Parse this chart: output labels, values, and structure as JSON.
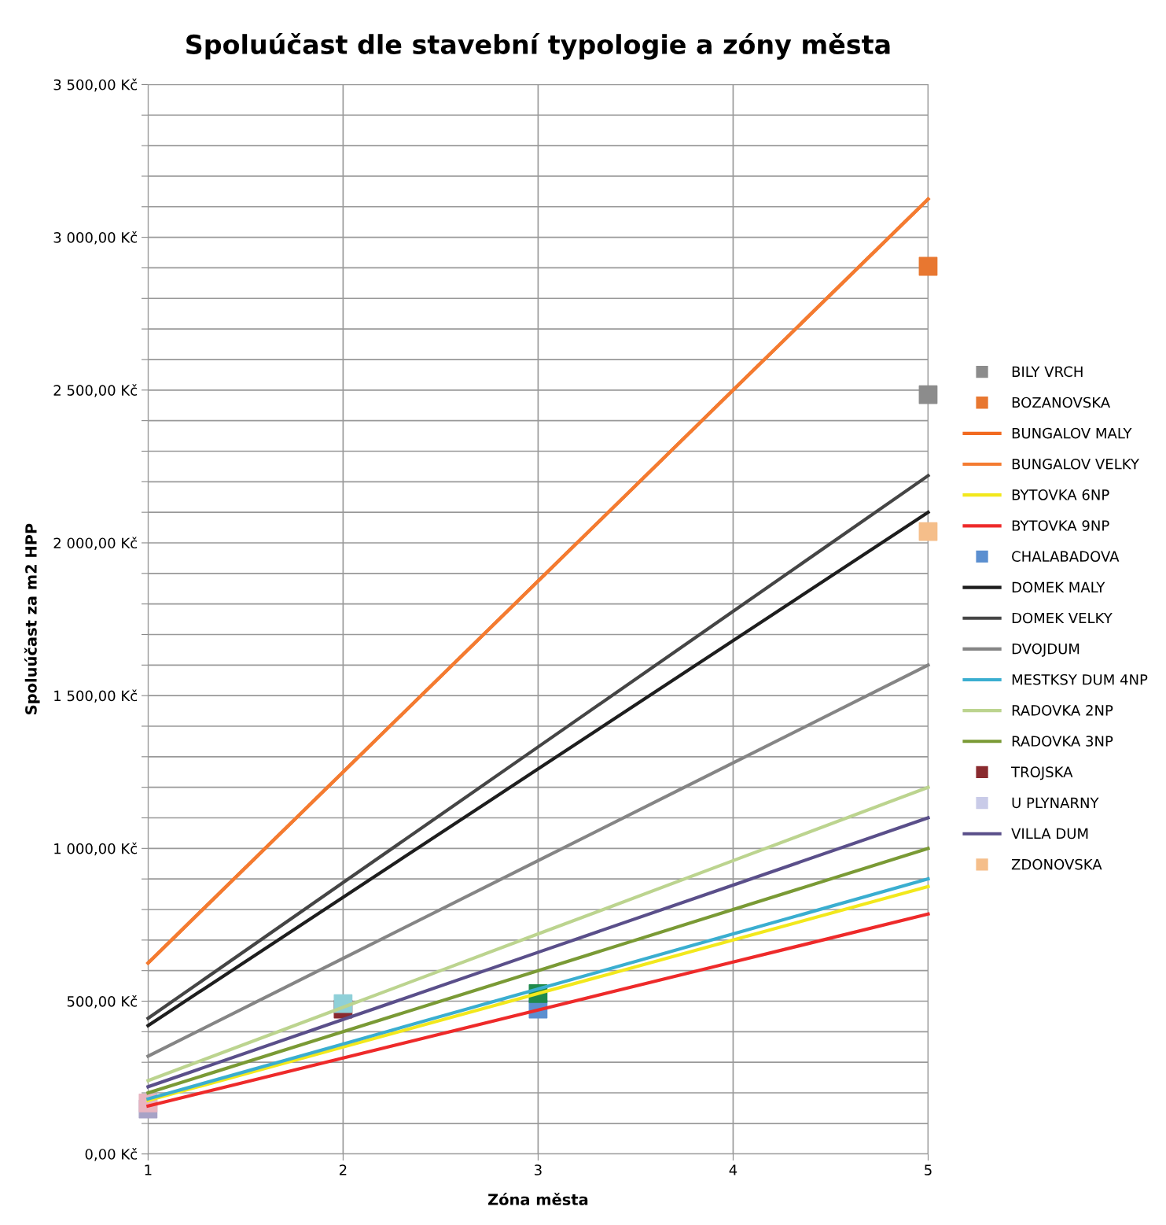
{
  "chart_data": {
    "type": "line",
    "title": "Spoluúčast dle stavební typologie a zóny města",
    "xlabel": "Zóna města",
    "ylabel": "Spoluúčast za m2 HPP",
    "xlim": [
      1,
      5
    ],
    "xticks": [
      1,
      2,
      3,
      4,
      5
    ],
    "ylim": [
      0,
      3500
    ],
    "yticks": [
      {
        "value": 0,
        "label": "0,00 Kč"
      },
      {
        "value": 100,
        "label": null
      },
      {
        "value": 200,
        "label": null
      },
      {
        "value": 300,
        "label": null
      },
      {
        "value": 400,
        "label": null
      },
      {
        "value": 500,
        "label": "500,00 Kč"
      },
      {
        "value": 600,
        "label": null
      },
      {
        "value": 700,
        "label": null
      },
      {
        "value": 800,
        "label": null
      },
      {
        "value": 900,
        "label": null
      },
      {
        "value": 1000,
        "label": "1 000,00 Kč"
      },
      {
        "value": 1100,
        "label": null
      },
      {
        "value": 1200,
        "label": null
      },
      {
        "value": 1300,
        "label": null
      },
      {
        "value": 1400,
        "label": null
      },
      {
        "value": 1500,
        "label": "1 500,00 Kč"
      },
      {
        "value": 1600,
        "label": null
      },
      {
        "value": 1700,
        "label": null
      },
      {
        "value": 1800,
        "label": null
      },
      {
        "value": 1900,
        "label": null
      },
      {
        "value": 2000,
        "label": "2 000,00 Kč"
      },
      {
        "value": 2100,
        "label": null
      },
      {
        "value": 2200,
        "label": null
      },
      {
        "value": 2300,
        "label": null
      },
      {
        "value": 2400,
        "label": null
      },
      {
        "value": 2500,
        "label": "2 500,00 Kč"
      },
      {
        "value": 2600,
        "label": null
      },
      {
        "value": 2700,
        "label": null
      },
      {
        "value": 2800,
        "label": null
      },
      {
        "value": 2900,
        "label": null
      },
      {
        "value": 3000,
        "label": "3 000,00 Kč"
      },
      {
        "value": 3100,
        "label": null
      },
      {
        "value": 3200,
        "label": null
      },
      {
        "value": 3300,
        "label": null
      },
      {
        "value": 3400,
        "label": null
      },
      {
        "value": 3500,
        "label": "3 500,00 Kč"
      }
    ],
    "grid": true,
    "legend": "right",
    "series": [
      {
        "name": "BILY VRCH",
        "type": "scatter",
        "marker": "square",
        "color": "#8c8c8c",
        "x": [
          5
        ],
        "values": [
          2485
        ]
      },
      {
        "name": "BOZANOVSKA",
        "type": "scatter",
        "marker": "square",
        "color": "#e87730",
        "x": [
          5
        ],
        "values": [
          2905
        ]
      },
      {
        "name": "BUNGALOV MALY",
        "type": "line",
        "color": "#f26a21",
        "x": [
          1,
          2,
          3,
          4,
          5
        ],
        "values": [
          625,
          1250,
          1875,
          2500,
          3125
        ]
      },
      {
        "name": "BUNGALOV VELKY",
        "type": "line",
        "color": "#f47b30",
        "x": [
          1,
          2,
          3,
          4,
          5
        ],
        "values": [
          625,
          1250,
          1875,
          2500,
          3125
        ]
      },
      {
        "name": "BYTOVKA 6NP",
        "type": "line",
        "color": "#f2e81c",
        "x": [
          1,
          2,
          3,
          4,
          5
        ],
        "values": [
          175,
          350,
          525,
          700,
          875
        ]
      },
      {
        "name": "BYTOVKA 9NP",
        "type": "line",
        "color": "#ee2a2a",
        "x": [
          1,
          2,
          3,
          4,
          5
        ],
        "values": [
          157,
          314,
          471,
          628,
          785
        ]
      },
      {
        "name": "CHALABADOVA",
        "type": "scatter",
        "marker": "square",
        "color": "#5b8fd0",
        "x": [
          3
        ],
        "values": [
          474
        ]
      },
      {
        "name": "DOMEK MALY",
        "type": "line",
        "color": "#1e1e1e",
        "x": [
          1,
          2,
          3,
          4,
          5
        ],
        "values": [
          420,
          840,
          1260,
          1680,
          2100
        ]
      },
      {
        "name": "DOMEK VELKY",
        "type": "line",
        "color": "#454545",
        "x": [
          1,
          2,
          3,
          4,
          5
        ],
        "values": [
          444,
          888,
          1332,
          1776,
          2220
        ]
      },
      {
        "name": "DVOJDUM",
        "type": "line",
        "color": "#858585",
        "x": [
          1,
          2,
          3,
          4,
          5
        ],
        "values": [
          320,
          640,
          960,
          1280,
          1600
        ]
      },
      {
        "type": "scatter",
        "marker": "square",
        "color": "#a7a2c6",
        "x": [
          1
        ],
        "values": [
          147
        ]
      },
      {
        "name": "MESTKSY DUM 4NP",
        "type": "line",
        "color": "#3aaed0",
        "x": [
          1,
          2,
          3,
          4,
          5
        ],
        "values": [
          180,
          360,
          540,
          720,
          900
        ]
      },
      {
        "name": "RADOVKA 2NP",
        "type": "line",
        "color": "#bcd48f",
        "x": [
          1,
          2,
          3,
          4,
          5
        ],
        "values": [
          240,
          480,
          720,
          960,
          1200
        ]
      },
      {
        "name": "RADOVKA 3NP",
        "type": "line",
        "color": "#7a9a35",
        "x": [
          1,
          2,
          3,
          4,
          5
        ],
        "values": [
          200,
          400,
          600,
          800,
          1000
        ]
      },
      {
        "type": "scatter",
        "marker": "square",
        "color": "#1f8a4c",
        "x": [
          3
        ],
        "values": [
          525
        ]
      },
      {
        "type": "scatter",
        "marker": "square",
        "color": "#e8b4c0",
        "x": [
          1
        ],
        "values": [
          167
        ]
      },
      {
        "name": "TROJSKA",
        "type": "scatter",
        "marker": "square",
        "color": "#8a2a2e",
        "x": [
          2
        ],
        "values": [
          474
        ]
      },
      {
        "name": "U PLYNARNY",
        "type": "scatter",
        "marker": "square",
        "color": "#c9cbe8"
      },
      {
        "name": "VILLA DUM",
        "type": "line",
        "color": "#5a4f8a",
        "x": [
          1,
          2,
          3,
          4,
          5
        ],
        "values": [
          220,
          440,
          660,
          880,
          1100
        ]
      },
      {
        "type": "scatter",
        "marker": "square",
        "color": "#8fd0d8",
        "x": [
          2
        ],
        "values": [
          492
        ]
      },
      {
        "name": "ZDONOVSKA",
        "type": "scatter",
        "marker": "square",
        "color": "#f5be8a",
        "x": [
          5
        ],
        "values": [
          2037
        ]
      }
    ]
  }
}
